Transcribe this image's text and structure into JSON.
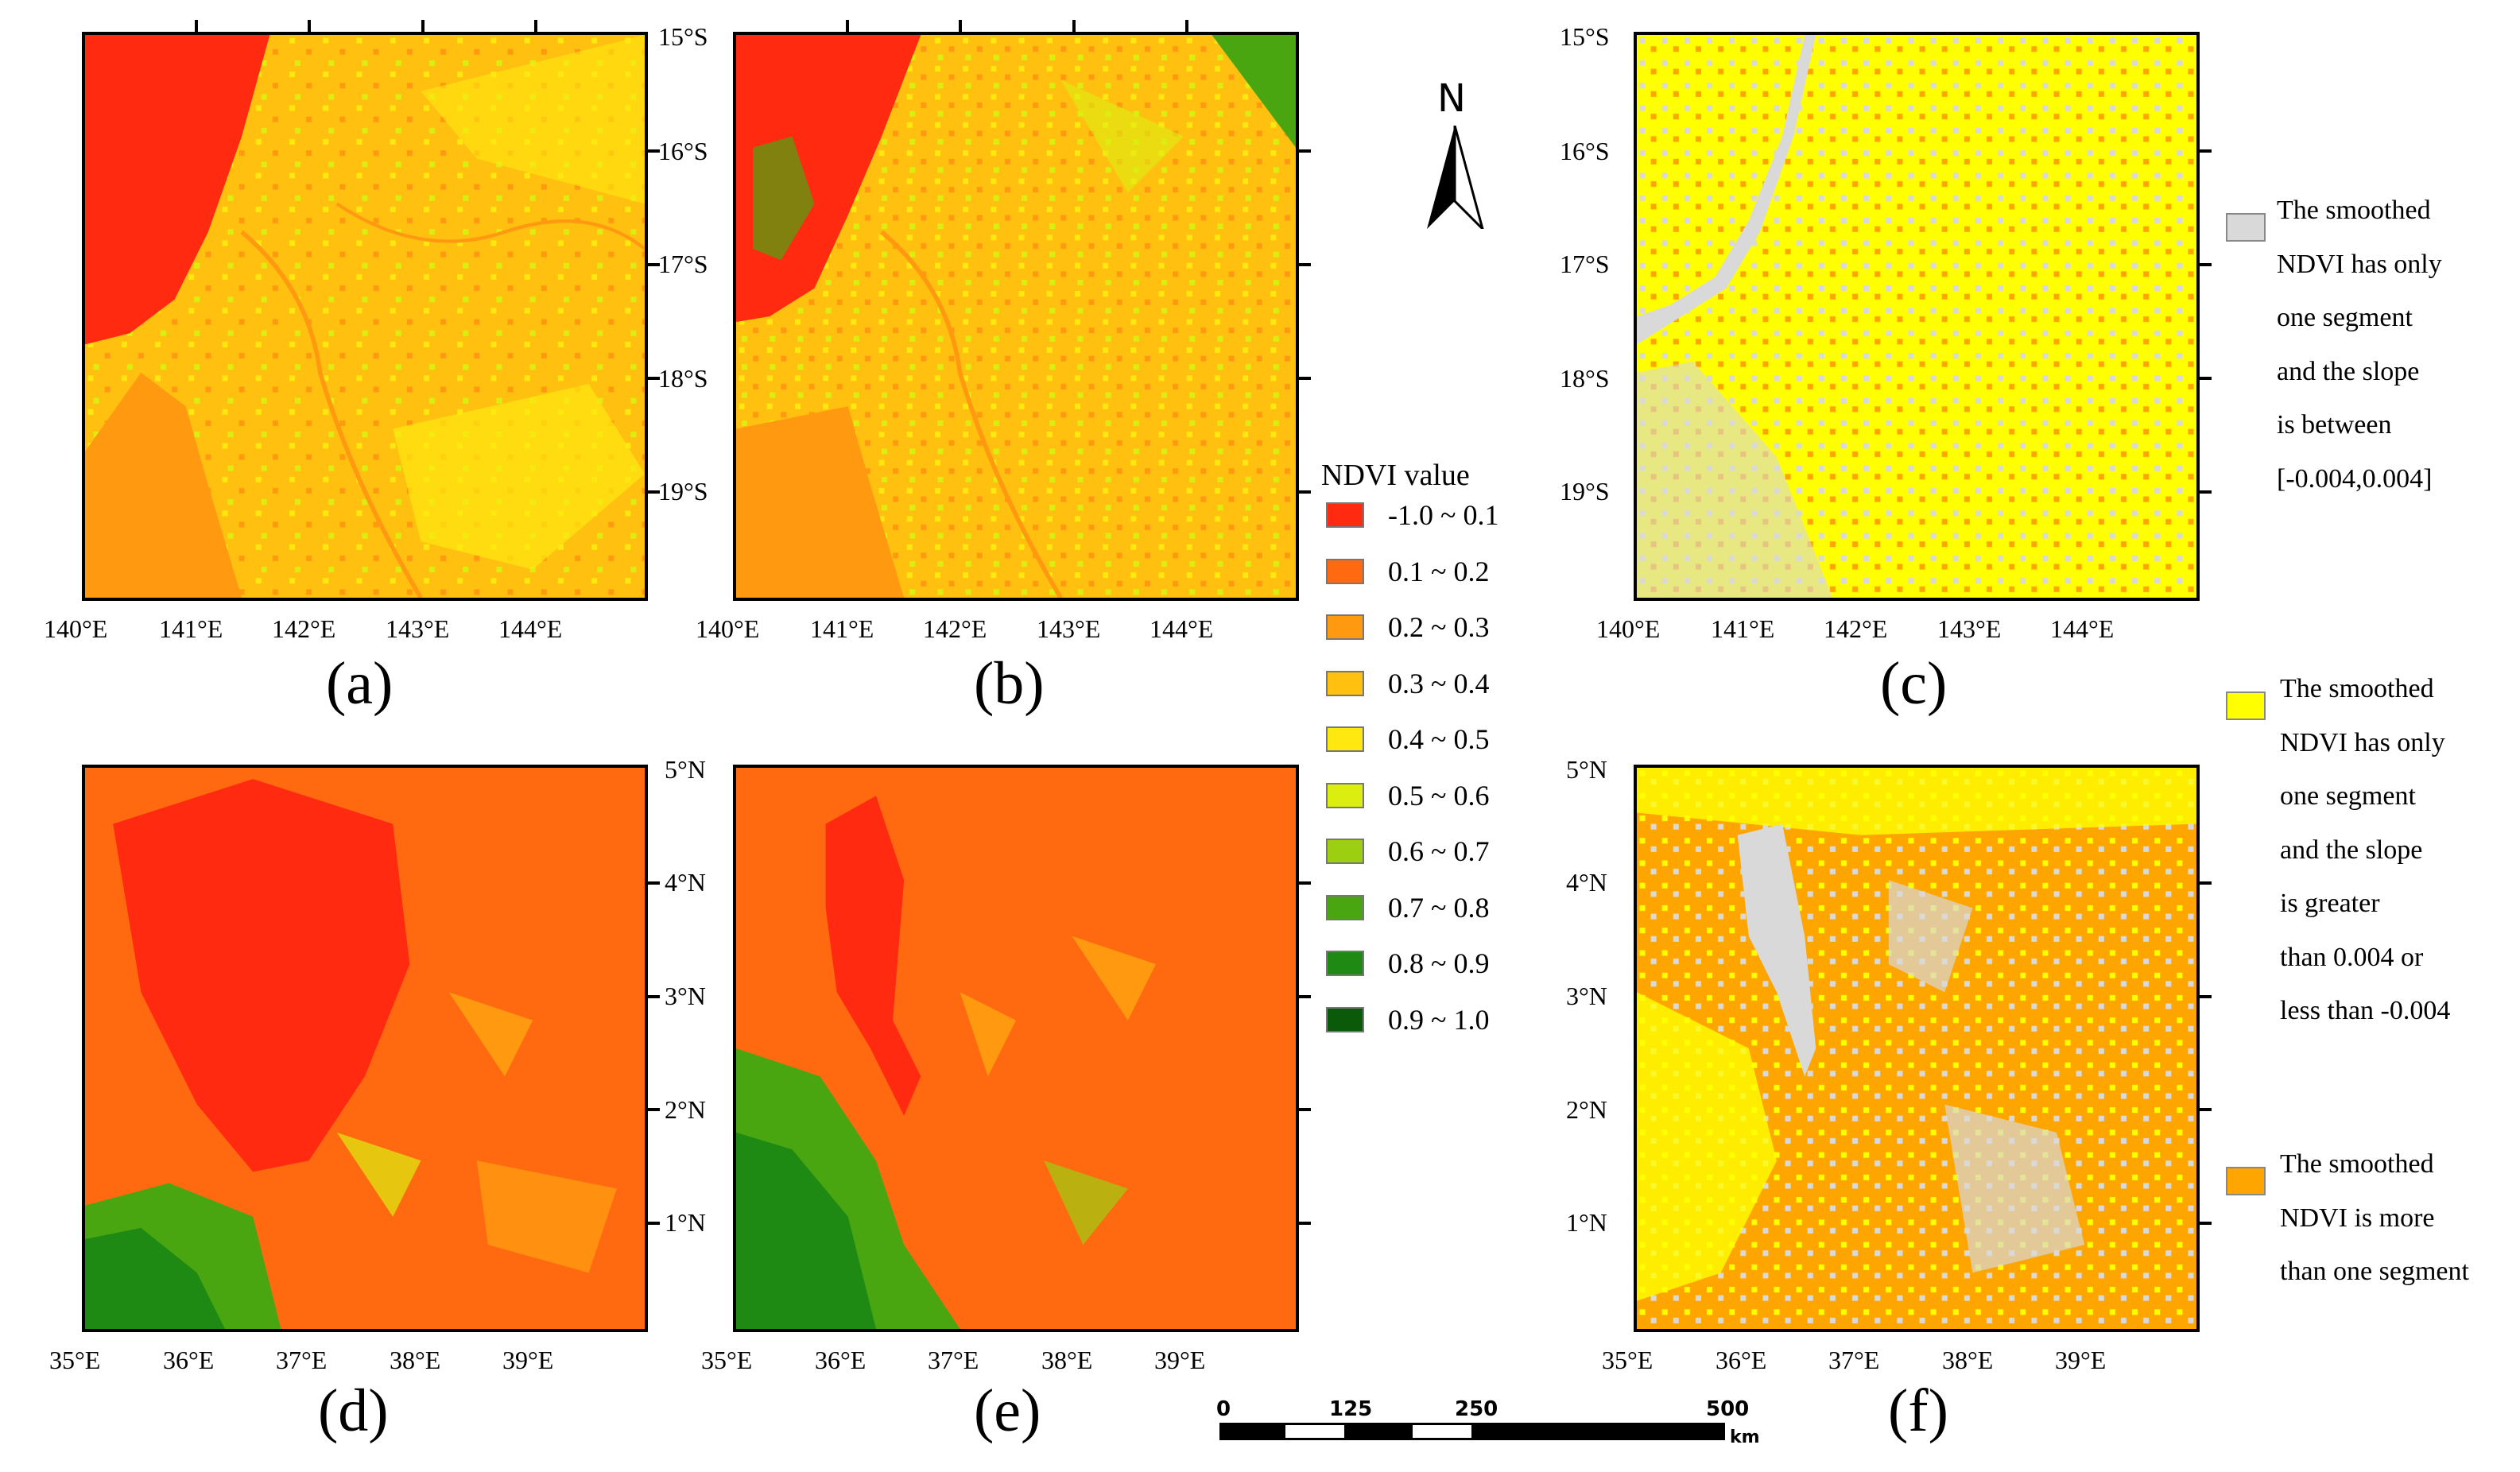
{
  "panels": {
    "a": {
      "label": "(a)"
    },
    "b": {
      "label": "(b)"
    },
    "c": {
      "label": "(c)"
    },
    "d": {
      "label": "(d)"
    },
    "e": {
      "label": "(e)"
    },
    "f": {
      "label": "(f)"
    }
  },
  "top_axes": {
    "lat_labels": [
      "15°S",
      "16°S",
      "17°S",
      "18°S",
      "19°S"
    ],
    "lon_labels": [
      "140°E",
      "141°E",
      "142°E",
      "143°E",
      "144°E"
    ]
  },
  "bottom_axes": {
    "lat_labels": [
      "5°N",
      "4°N",
      "3°N",
      "2°N",
      "1°N"
    ],
    "lon_labels": [
      "35°E",
      "36°E",
      "37°E",
      "38°E",
      "39°E"
    ]
  },
  "north_arrow": {
    "label": "N"
  },
  "ndvi_legend": {
    "title": "NDVI value",
    "classes": [
      {
        "label": "-1.0 ~ 0.1",
        "color": "#ff2a10"
      },
      {
        "label": "0.1 ~ 0.2",
        "color": "#ff6a10"
      },
      {
        "label": "0.2 ~ 0.3",
        "color": "#ff9a10"
      },
      {
        "label": "0.3 ~ 0.4",
        "color": "#ffc010"
      },
      {
        "label": "0.4 ~ 0.5",
        "color": "#ffe810"
      },
      {
        "label": "0.5 ~ 0.6",
        "color": "#dcee10"
      },
      {
        "label": "0.6 ~ 0.7",
        "color": "#9ccf10"
      },
      {
        "label": "0.7 ~ 0.8",
        "color": "#4aa610"
      },
      {
        "label": "0.8 ~ 0.9",
        "color": "#1e8a14"
      },
      {
        "label": "0.9 ~ 1.0",
        "color": "#0a5a0a"
      }
    ]
  },
  "category_legend": [
    {
      "color": "#d9d9d9",
      "lines": [
        "The smoothed",
        "NDVI has only",
        "one segment",
        "and the slope",
        "is between",
        "[-0.004,0.004]"
      ]
    },
    {
      "color": "#ffff00",
      "lines": [
        "The smoothed",
        "NDVI has only",
        "one segment",
        "and the slope",
        "is greater",
        "than 0.004 or",
        "less than -0.004"
      ]
    },
    {
      "color": "#ffa500",
      "lines": [
        "The smoothed",
        "NDVI is more",
        "than one segment"
      ]
    }
  ],
  "scale_bar": {
    "tick_labels": [
      "0",
      "125",
      "250",
      "500"
    ],
    "unit": "km"
  }
}
